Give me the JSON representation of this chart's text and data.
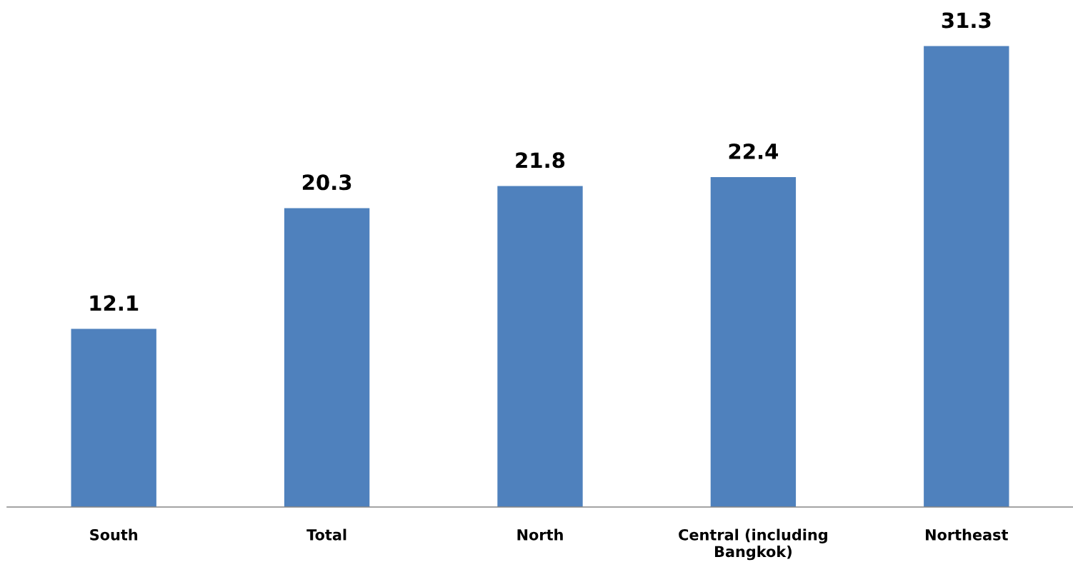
{
  "chart_data": {
    "type": "bar",
    "categories": [
      "South",
      "Total",
      "North",
      "Central (including\nBangkok)",
      "Northeast"
    ],
    "values": [
      12.1,
      20.3,
      21.8,
      22.4,
      31.3
    ],
    "color": "#4f81bd",
    "data_labels": true,
    "grid": false,
    "legend": false,
    "tick_labels": "x"
  }
}
